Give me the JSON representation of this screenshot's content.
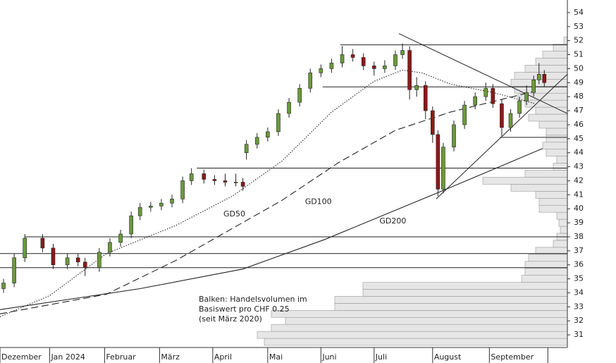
{
  "chart_data": {
    "type": "candlestick",
    "xlim": [
      0,
      320
    ],
    "xticks": [
      {
        "value": 0,
        "label": "Dezember"
      },
      {
        "value": 28,
        "label": "Jan 2024"
      },
      {
        "value": 59,
        "label": "Februar"
      },
      {
        "value": 90,
        "label": "März"
      },
      {
        "value": 120,
        "label": "April"
      },
      {
        "value": 151,
        "label": "Mai"
      },
      {
        "value": 181,
        "label": "Juni"
      },
      {
        "value": 211,
        "label": "Juli"
      },
      {
        "value": 244,
        "label": "August"
      },
      {
        "value": 276,
        "label": "September"
      },
      {
        "value": 309,
        "label": ""
      }
    ],
    "ylim": [
      30.1,
      54.9
    ],
    "yticks": [
      31,
      32,
      33,
      34,
      35,
      36,
      37,
      38,
      39,
      40,
      41,
      42,
      43,
      44,
      45,
      46,
      47,
      48,
      49,
      50,
      51,
      52,
      53,
      54
    ],
    "up_color": "#6a9a3c",
    "down_color": "#8b1a1a",
    "x": [
      2,
      8,
      14,
      24,
      30,
      38,
      44,
      48,
      56,
      62,
      68,
      74,
      79,
      85,
      91,
      97,
      103,
      108,
      115,
      121,
      127,
      133,
      137,
      139,
      145,
      151,
      157,
      163,
      169,
      175,
      181,
      187,
      193,
      199,
      205,
      211,
      217,
      223,
      227,
      231,
      235,
      240,
      244,
      247,
      250,
      256,
      262,
      268,
      274,
      278,
      283,
      288,
      293,
      297,
      301,
      304,
      307
    ],
    "open": [
      34.3,
      34.7,
      36.5,
      37.9,
      37.2,
      36.0,
      36.5,
      36.2,
      35.8,
      36.9,
      37.6,
      38.2,
      39.5,
      40.1,
      40.2,
      40.4,
      40.7,
      42.0,
      42.5,
      42.1,
      42.0,
      41.9,
      41.9,
      44.0,
      44.6,
      45.1,
      45.5,
      46.8,
      47.6,
      48.6,
      49.7,
      50.0,
      50.4,
      51.0,
      50.8,
      50.2,
      50.0,
      50.2,
      51.0,
      51.3,
      48.5,
      48.8,
      47.0,
      45.3,
      41.4,
      44.4,
      46.0,
      47.4,
      48.0,
      48.6,
      47.5,
      45.8,
      46.8,
      47.7,
      48.3,
      49.2,
      49.6
    ],
    "high": [
      35.0,
      36.8,
      38.2,
      38.2,
      37.5,
      36.8,
      36.8,
      36.5,
      37.2,
      37.9,
      38.5,
      39.8,
      40.4,
      40.5,
      40.7,
      41.0,
      42.3,
      42.9,
      42.8,
      42.4,
      42.5,
      42.5,
      42.2,
      44.9,
      45.4,
      45.8,
      47.1,
      47.9,
      48.9,
      50.0,
      50.3,
      50.7,
      51.6,
      51.4,
      51.1,
      50.5,
      50.6,
      51.3,
      51.8,
      51.6,
      49.4,
      49.1,
      47.3,
      45.6,
      44.7,
      46.3,
      47.7,
      48.3,
      49.0,
      48.9,
      47.8,
      47.1,
      48.0,
      48.8,
      49.5,
      50.4,
      49.9
    ],
    "low": [
      34.0,
      34.4,
      36.2,
      36.9,
      35.7,
      35.7,
      35.9,
      35.2,
      35.5,
      36.6,
      37.3,
      37.9,
      39.2,
      39.8,
      39.9,
      40.1,
      40.4,
      41.7,
      41.8,
      41.7,
      41.6,
      41.6,
      41.3,
      43.5,
      44.3,
      44.8,
      45.2,
      46.5,
      47.3,
      48.3,
      49.4,
      49.7,
      50.1,
      50.5,
      49.9,
      49.5,
      49.7,
      49.9,
      50.7,
      47.8,
      48.0,
      46.4,
      44.7,
      40.9,
      41.1,
      44.1,
      45.7,
      47.1,
      47.7,
      47.2,
      45.2,
      45.5,
      46.5,
      47.4,
      48.0,
      48.9,
      48.7
    ],
    "close": [
      34.7,
      36.5,
      37.9,
      37.2,
      36.0,
      36.5,
      36.2,
      35.8,
      36.9,
      37.6,
      38.2,
      39.5,
      40.1,
      40.2,
      40.4,
      40.7,
      42.0,
      42.5,
      42.1,
      42.0,
      41.9,
      41.9,
      41.6,
      44.6,
      45.1,
      45.5,
      46.8,
      47.6,
      48.6,
      49.7,
      50.0,
      50.4,
      51.0,
      50.8,
      50.2,
      50.0,
      50.2,
      51.0,
      51.3,
      48.5,
      48.8,
      47.0,
      45.3,
      41.4,
      44.4,
      46.0,
      47.4,
      48.0,
      48.6,
      47.5,
      45.8,
      46.8,
      47.7,
      48.3,
      49.2,
      49.6,
      49.0
    ],
    "moving_averages": [
      {
        "name": "GD50",
        "style": "dotted",
        "label_at": [
          126,
          39.6
        ],
        "x": [
          0,
          28,
          60,
          99,
          131,
          159,
          187,
          211,
          227,
          238,
          254,
          278,
          302
        ],
        "values": [
          32.3,
          33.8,
          36.8,
          38.8,
          40.9,
          43.4,
          46.9,
          49.1,
          49.9,
          49.7,
          48.9,
          48.3,
          47.5
        ]
      },
      {
        "name": "GD100",
        "style": "dashed",
        "label_at": [
          172,
          40.5
        ],
        "x": [
          0,
          60,
          99,
          159,
          191,
          223,
          254,
          302
        ],
        "values": [
          32.5,
          33.9,
          36.3,
          40.6,
          43.3,
          45.6,
          46.9,
          48.4
        ]
      },
      {
        "name": "GD200",
        "style": "solid",
        "label_at": [
          214,
          39.1
        ],
        "x": [
          0,
          79,
          137,
          183,
          246,
          278,
          306
        ],
        "values": [
          32.8,
          34.3,
          35.7,
          37.8,
          41.1,
          42.8,
          44.3
        ]
      }
    ],
    "levels": [
      {
        "value": 51.7,
        "from": 192,
        "to": 320
      },
      {
        "value": 48.7,
        "from": 182,
        "to": 320
      },
      {
        "value": 42.9,
        "from": 111,
        "to": 320
      },
      {
        "value": 38.0,
        "from": 14,
        "to": 320
      },
      {
        "value": 36.8,
        "from": 0,
        "to": 320
      },
      {
        "value": 35.8,
        "from": 0,
        "to": 320
      },
      {
        "value": 45.1,
        "from": 282,
        "to": 320
      }
    ],
    "trendlines": [
      {
        "x": [
          225,
          320
        ],
        "values": [
          52.5,
          46.8
        ]
      },
      {
        "x": [
          246,
          320
        ],
        "values": [
          40.7,
          49.6
        ]
      }
    ],
    "volume_profile": {
      "color": "#e6e6e6",
      "xlim": [
        0,
        805
      ],
      "prices": [
        30.5,
        31,
        31.5,
        32,
        32.5,
        33,
        33.5,
        34,
        34.5,
        35,
        35.5,
        36,
        36.5,
        37,
        37.5,
        38,
        38.5,
        39,
        39.5,
        40,
        40.5,
        41,
        41.5,
        42,
        42.5,
        43,
        43.5,
        44,
        44.5,
        45,
        45.5,
        46,
        46.5,
        47,
        47.5,
        48,
        48.5,
        49,
        49.5,
        50,
        50.5,
        51,
        51.5,
        52
      ],
      "values": [
        430,
        440,
        420,
        400,
        420,
        330,
        330,
        290,
        290,
        65,
        60,
        60,
        55,
        45,
        20,
        15,
        10,
        12,
        15,
        40,
        40,
        45,
        80,
        120,
        60,
        20,
        15,
        30,
        35,
        30,
        30,
        40,
        55,
        45,
        60,
        70,
        75,
        80,
        75,
        60,
        45,
        35,
        20,
        5
      ]
    },
    "note": [
      "Balken: Handelsvolumen im",
      "Basiswert pro CHF 0.25",
      "(seit März 2020)"
    ]
  }
}
